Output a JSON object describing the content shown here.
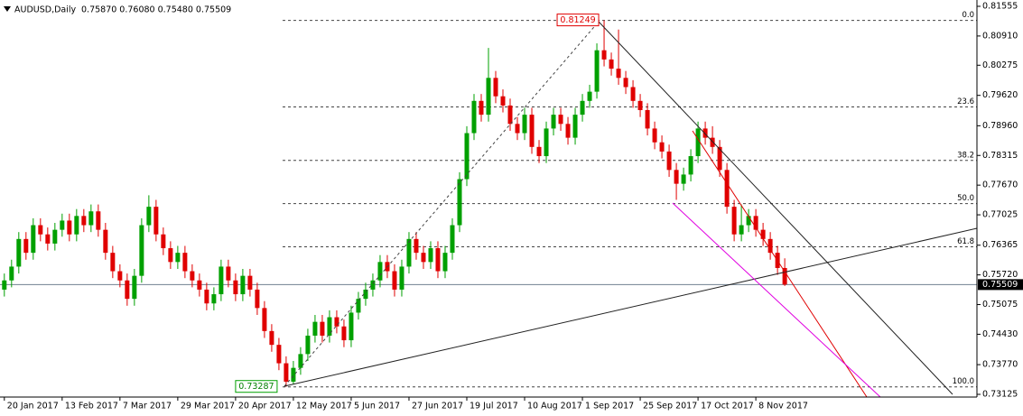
{
  "chart_data": {
    "type": "candlestick",
    "title": "AUDUSD,Daily",
    "header_values": "0.75870 0.76080 0.75480 0.75509",
    "up_color": "#00a000",
    "down_color": "#e00000",
    "ylim": [
      0.73066,
      0.81692
    ],
    "yticks": [
      0.81555,
      {
        "value": 0.8091,
        "label": "0.80910"
      },
      0.80275,
      {
        "value": 0.7962,
        "label": "0.79620"
      },
      {
        "value": 0.7896,
        "label": "0.78960"
      },
      0.78315,
      {
        "value": 0.7767,
        "label": "0.77670"
      },
      0.77025,
      0.76365,
      {
        "value": 0.7572,
        "label": "0.75720"
      },
      0.75075,
      {
        "value": 0.7443,
        "label": "0.74430"
      },
      {
        "value": 0.7377,
        "label": "0.73770"
      },
      0.73125
    ],
    "xlim": [
      -0.6,
      134.6
    ],
    "xticks": [
      {
        "value": 0,
        "label": "20 Jan 2017"
      },
      {
        "value": 8,
        "label": "13 Feb 2017"
      },
      {
        "value": 16,
        "label": "7 Mar 2017"
      },
      {
        "value": 24,
        "label": "29 Mar 2017"
      },
      {
        "value": 32,
        "label": "20 Apr 2017"
      },
      {
        "value": 40,
        "label": "12 May 2017"
      },
      {
        "value": 48,
        "label": "5 Jun 2017"
      },
      {
        "value": 56,
        "label": "27 Jun 2017"
      },
      {
        "value": 64,
        "label": "19 Jul 2017"
      },
      {
        "value": 72,
        "label": "10 Aug 2017"
      },
      {
        "value": 80,
        "label": "1 Sep 2017"
      },
      {
        "value": 88,
        "label": "25 Sep 2017"
      },
      {
        "value": 96,
        "label": "17 Oct 2017"
      },
      {
        "value": 104,
        "label": "8 Nov 2017"
      }
    ],
    "open": [
      0.754,
      0.756,
      0.759,
      0.765,
      0.762,
      0.768,
      0.766,
      0.764,
      0.767,
      0.769,
      0.766,
      0.77,
      0.768,
      0.771,
      0.767,
      0.762,
      0.758,
      0.756,
      0.752,
      0.757,
      0.768,
      0.772,
      0.766,
      0.763,
      0.76,
      0.762,
      0.758,
      0.756,
      0.754,
      0.751,
      0.753,
      0.759,
      0.756,
      0.753,
      0.757,
      0.754,
      0.75,
      0.745,
      0.742,
      0.738,
      0.734,
      0.737,
      0.74,
      0.744,
      0.747,
      0.744,
      0.748,
      0.746,
      0.743,
      0.749,
      0.752,
      0.754,
      0.756,
      0.76,
      0.758,
      0.754,
      0.759,
      0.765,
      0.762,
      0.76,
      0.763,
      0.758,
      0.762,
      0.768,
      0.778,
      0.788,
      0.795,
      0.792,
      0.8,
      0.796,
      0.794,
      0.79,
      0.788,
      0.792,
      0.785,
      0.783,
      0.789,
      0.792,
      0.79,
      0.787,
      0.792,
      0.795,
      0.797,
      0.806,
      0.804,
      0.802,
      0.8,
      0.798,
      0.795,
      0.793,
      0.789,
      0.786,
      0.784,
      0.78,
      0.777,
      0.779,
      0.783,
      0.789,
      0.787,
      0.785,
      0.78,
      0.772,
      0.766,
      0.768,
      0.77,
      0.767,
      0.765,
      0.762,
      0.7587
    ],
    "high": [
      0.7575,
      0.7605,
      0.7665,
      0.7665,
      0.7695,
      0.7695,
      0.7675,
      0.7685,
      0.7705,
      0.7705,
      0.7715,
      0.7715,
      0.7725,
      0.7725,
      0.7685,
      0.7635,
      0.7595,
      0.7575,
      0.7585,
      0.7695,
      0.7745,
      0.7735,
      0.7675,
      0.7645,
      0.7635,
      0.7635,
      0.7595,
      0.7575,
      0.7555,
      0.7545,
      0.7605,
      0.7605,
      0.7575,
      0.7585,
      0.7585,
      0.7555,
      0.7515,
      0.7465,
      0.7435,
      0.7395,
      0.7385,
      0.7415,
      0.7455,
      0.7485,
      0.7485,
      0.7495,
      0.7495,
      0.7475,
      0.7505,
      0.7535,
      0.7555,
      0.7575,
      0.7615,
      0.7615,
      0.7595,
      0.7605,
      0.7665,
      0.7665,
      0.7635,
      0.7645,
      0.7645,
      0.7635,
      0.7695,
      0.7795,
      0.7895,
      0.7965,
      0.7965,
      0.8065,
      0.8015,
      0.7975,
      0.7955,
      0.7915,
      0.7935,
      0.7935,
      0.7865,
      0.7905,
      0.7935,
      0.7935,
      0.7915,
      0.7935,
      0.7965,
      0.7985,
      0.8075,
      0.8125,
      0.8055,
      0.8105,
      0.8015,
      0.7995,
      0.7965,
      0.7945,
      0.7905,
      0.7875,
      0.7855,
      0.7815,
      0.7805,
      0.7845,
      0.7905,
      0.7905,
      0.7895,
      0.7865,
      0.7815,
      0.7735,
      0.7725,
      0.7715,
      0.7715,
      0.7685,
      0.7665,
      0.7635,
      0.7608
    ],
    "low": [
      0.7525,
      0.7545,
      0.7575,
      0.7605,
      0.7605,
      0.7645,
      0.7625,
      0.7625,
      0.7655,
      0.7645,
      0.7645,
      0.7665,
      0.7665,
      0.7655,
      0.7605,
      0.7565,
      0.7545,
      0.7505,
      0.7505,
      0.7555,
      0.7665,
      0.7645,
      0.7615,
      0.7585,
      0.7585,
      0.7565,
      0.7545,
      0.7525,
      0.7495,
      0.7495,
      0.7515,
      0.7545,
      0.7515,
      0.7515,
      0.7525,
      0.7485,
      0.7435,
      0.7405,
      0.7365,
      0.7329,
      0.7335,
      0.7355,
      0.7385,
      0.7425,
      0.7425,
      0.7425,
      0.7445,
      0.7415,
      0.7415,
      0.7475,
      0.7505,
      0.7525,
      0.7545,
      0.7565,
      0.7525,
      0.7525,
      0.7575,
      0.7605,
      0.7585,
      0.7585,
      0.7565,
      0.7565,
      0.7605,
      0.7665,
      0.7765,
      0.7865,
      0.7905,
      0.7905,
      0.7945,
      0.7925,
      0.7885,
      0.7865,
      0.7865,
      0.7835,
      0.7815,
      0.7815,
      0.7875,
      0.7885,
      0.7855,
      0.7855,
      0.7905,
      0.7935,
      0.7955,
      0.8025,
      0.8005,
      0.7985,
      0.7965,
      0.7935,
      0.7915,
      0.7875,
      0.7845,
      0.7825,
      0.7785,
      0.7735,
      0.7755,
      0.7775,
      0.7815,
      0.7855,
      0.7835,
      0.7785,
      0.7705,
      0.7645,
      0.7645,
      0.7665,
      0.7655,
      0.7635,
      0.7605,
      0.7572,
      0.7548
    ],
    "close": [
      0.756,
      0.759,
      0.765,
      0.762,
      0.768,
      0.766,
      0.764,
      0.767,
      0.769,
      0.766,
      0.77,
      0.768,
      0.771,
      0.767,
      0.762,
      0.758,
      0.756,
      0.752,
      0.757,
      0.768,
      0.772,
      0.766,
      0.763,
      0.76,
      0.762,
      0.758,
      0.756,
      0.754,
      0.751,
      0.753,
      0.759,
      0.756,
      0.753,
      0.757,
      0.754,
      0.75,
      0.745,
      0.742,
      0.738,
      0.734,
      0.737,
      0.74,
      0.744,
      0.747,
      0.744,
      0.748,
      0.746,
      0.743,
      0.749,
      0.752,
      0.754,
      0.756,
      0.76,
      0.758,
      0.754,
      0.759,
      0.765,
      0.762,
      0.76,
      0.763,
      0.758,
      0.762,
      0.768,
      0.778,
      0.788,
      0.795,
      0.792,
      0.8,
      0.796,
      0.794,
      0.79,
      0.788,
      0.792,
      0.785,
      0.783,
      0.789,
      0.792,
      0.79,
      0.787,
      0.792,
      0.795,
      0.797,
      0.806,
      0.804,
      0.802,
      0.8,
      0.798,
      0.795,
      0.793,
      0.789,
      0.786,
      0.784,
      0.78,
      0.777,
      0.779,
      0.783,
      0.789,
      0.787,
      0.785,
      0.78,
      0.772,
      0.766,
      0.768,
      0.77,
      0.767,
      0.765,
      0.762,
      0.7587,
      0.7551
    ],
    "fib_high": 0.81249,
    "fib_low": 0.73287,
    "fib_levels": [
      {
        "value": 0.81249,
        "label": "0.0"
      },
      {
        "value": 0.7937,
        "label": "23.6"
      },
      {
        "value": 0.78207,
        "label": "38.2"
      },
      {
        "value": 0.77268,
        "label": "50.0"
      },
      {
        "value": 0.76329,
        "label": "61.8"
      },
      {
        "value": 0.73287,
        "label": "100.0"
      }
    ],
    "last_price": 0.75509
  }
}
